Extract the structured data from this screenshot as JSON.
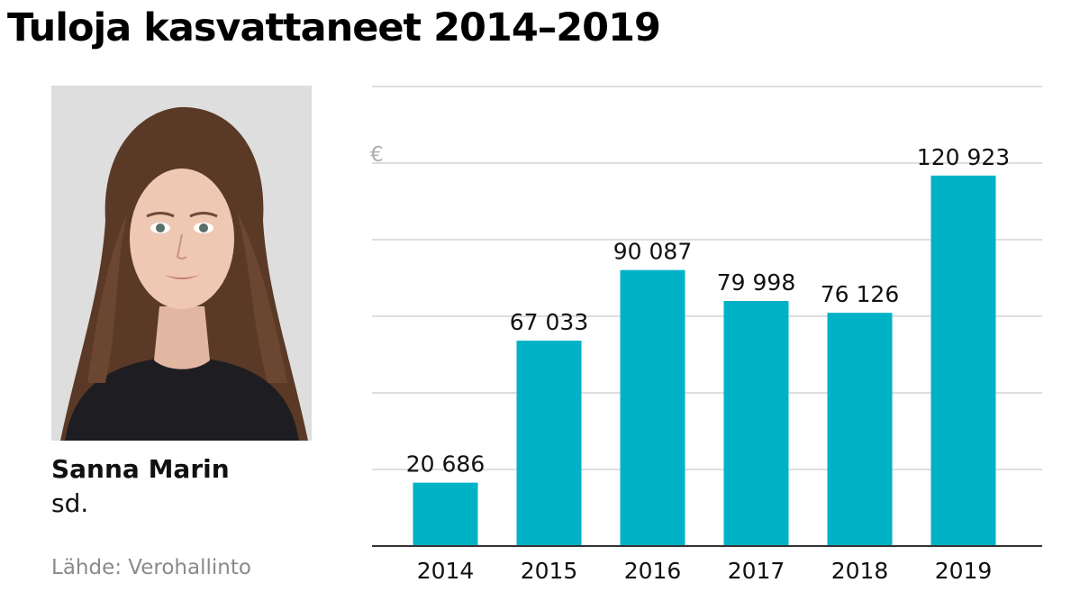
{
  "title": "Tuloja kasvattaneet 2014–2019",
  "person": {
    "name": "Sanna Marin",
    "party": "sd."
  },
  "source": "Lähde: Verohallinto",
  "colors": {
    "bar": "#00b2c6",
    "grid": "#d4d4d4",
    "axis": "#333333",
    "unit": "#b0b0b0"
  },
  "chart_data": {
    "type": "bar",
    "title": "Tuloja kasvattaneet 2014–2019",
    "ylabel": "€",
    "categories": [
      "2014",
      "2015",
      "2016",
      "2017",
      "2018",
      "2019"
    ],
    "values": [
      20686,
      67033,
      90087,
      79998,
      76126,
      120923
    ],
    "value_labels": [
      "20 686",
      "67 033",
      "90 087",
      "79 998",
      "76 126",
      "120 923"
    ],
    "ylim": [
      0,
      150000
    ],
    "grid": true,
    "legend": "none"
  }
}
